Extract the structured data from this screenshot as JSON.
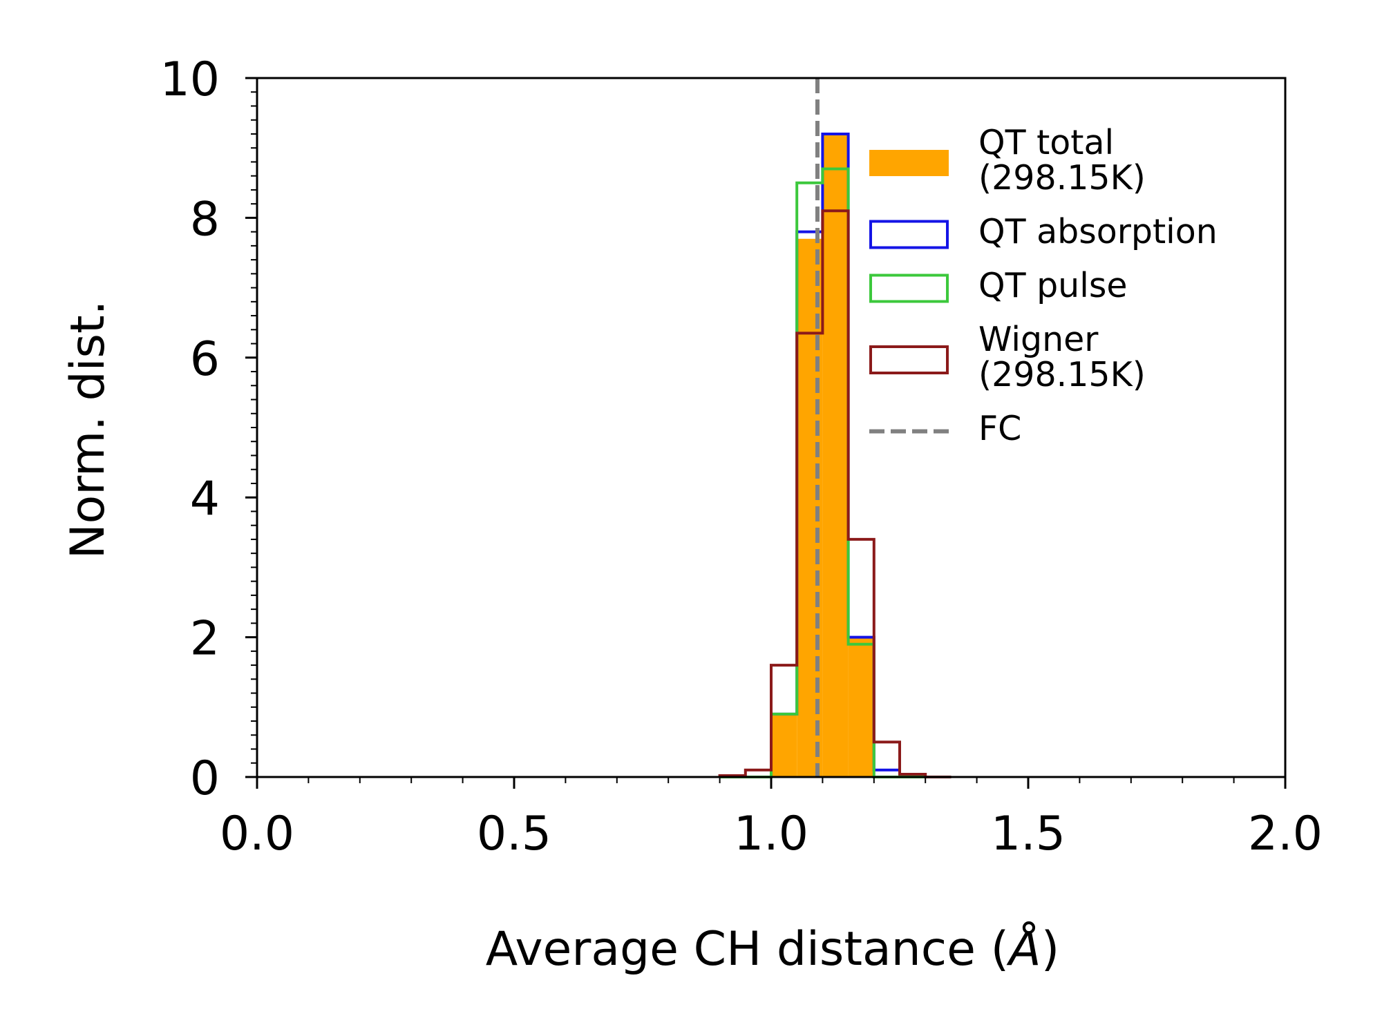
{
  "chart_data": {
    "type": "histogram",
    "xlabel": "Average CH distance (",
    "xlabel_unit": "Å",
    "xlabel_close": ")",
    "ylabel": "Norm. dist.",
    "xlim": [
      0.0,
      2.0
    ],
    "ylim": [
      0,
      10
    ],
    "x_ticks": [
      "0.0",
      "0.5",
      "1.0",
      "1.5",
      "2.0"
    ],
    "y_ticks": [
      "0",
      "2",
      "4",
      "6",
      "8",
      "10"
    ],
    "grid": false,
    "legend_position": "top-right",
    "bin_edges": [
      0.9,
      0.95,
      1.0,
      1.05,
      1.1,
      1.15,
      1.2,
      1.25,
      1.3,
      1.35
    ],
    "series": [
      {
        "name": "QT total\n (298.15K)",
        "style": "filled",
        "color": "#ffa500",
        "values": [
          0.0,
          0.0,
          0.9,
          7.7,
          9.2,
          2.0,
          0.0,
          0.0,
          0.0
        ]
      },
      {
        "name": "QT absorption",
        "style": "step",
        "color": "#1414e6",
        "values": [
          0.0,
          0.0,
          0.9,
          7.8,
          9.2,
          2.0,
          0.1,
          0.0,
          0.0
        ]
      },
      {
        "name": "QT pulse",
        "style": "step",
        "color": "#3cc83c",
        "values": [
          0.0,
          0.0,
          0.9,
          8.5,
          8.7,
          1.9,
          0.0,
          0.0,
          0.0
        ]
      },
      {
        "name": "Wigner\n (298.15K)",
        "style": "step",
        "color": "#8b1a1a",
        "values": [
          0.02,
          0.1,
          1.6,
          6.35,
          8.1,
          3.4,
          0.5,
          0.04,
          0.0
        ]
      }
    ],
    "reference_line": {
      "name": "FC",
      "x": 1.09,
      "style": "dashed",
      "color": "#808080"
    }
  }
}
